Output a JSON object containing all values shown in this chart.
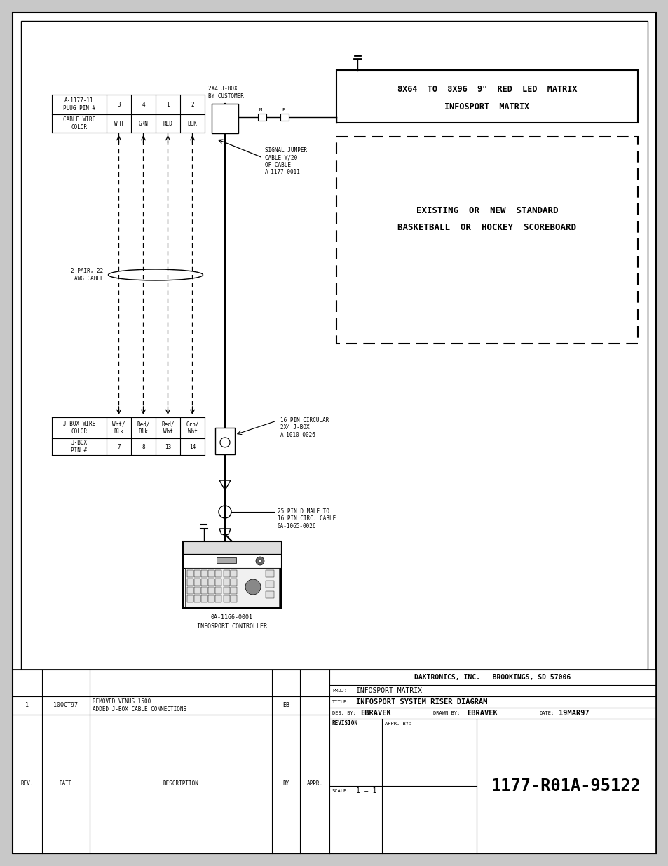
{
  "bg_color": "#ffffff",
  "line_color": "#000000",
  "page_bg": "#c8c8c8",
  "title_drawing": "1177-R01A-95122",
  "company": "DAKTRONICS, INC.   BROOKINGS, SD 57006",
  "proj": "INFOSPORT MATRIX",
  "title_block_text": "INFOSPORT SYSTEM RISER DIAGRAM",
  "des_by": "EBRAVEK",
  "drawn_by": "EBRAVEK",
  "date_text": "19MAR97",
  "scale_text": "1 = 1",
  "rev_rev": "1",
  "rev_date": "10OCT97",
  "rev_desc1": "REMOVED VENUS 1500",
  "rev_desc2": "ADDED J-BOX CABLE CONNECTIONS",
  "rev_by": "EB",
  "matrix_line1": "8X64  TO  8X96  9\"  RED  LED  MATRIX",
  "matrix_line2": "INFOSPORT  MATRIX",
  "sb_line1": "EXISTING  OR  NEW  STANDARD",
  "sb_line2": "BASKETBALL  OR  HOCKEY  SCOREBOARD",
  "jbox_top_label": "2X4 J-BOX\nBY CUSTOMER",
  "signal_jumper_label": "SIGNAL JUMPER\nCABLE W/20'\nOF CABLE\nA-1177-0011",
  "cable_label": "2 PAIR, 22\nAWG CABLE",
  "pin16_label": "16 PIN CIRCULAR\n2X4 J-BOX\nA-1010-0026",
  "pin25_label": "25 PIN D MALE TO\n16 PIN CIRC. CABLE\n0A-1065-0026",
  "ctrl_label1": "0A-1166-0001",
  "ctrl_label2": "INFOSPORT CONTROLLER",
  "top_table_header": [
    "A-1177-11\nPLUG PIN #",
    "3",
    "4",
    "1",
    "2"
  ],
  "top_table_row": [
    "CABLE WIRE\nCOLOR",
    "WHT",
    "GRN",
    "RED",
    "BLK"
  ],
  "bot_table_header": [
    "J-BOX WIRE\nCOLOR",
    "Wht/\nBlk",
    "Red/\nBlk",
    "Red/\nWht",
    "Grn/\nWht"
  ],
  "bot_table_row": [
    "J-BOX\nPIN #",
    "7",
    "8",
    "13",
    "14"
  ]
}
